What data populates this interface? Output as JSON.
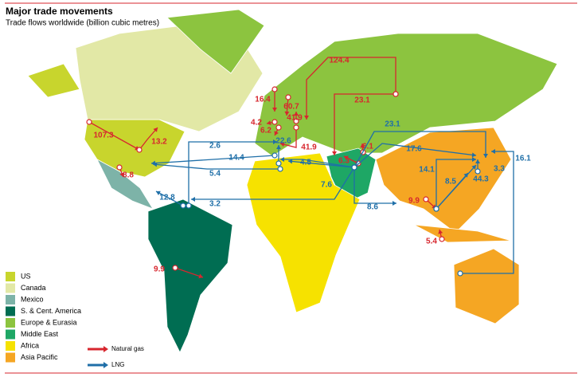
{
  "header": {
    "title": "Major trade movements",
    "subtitle": "Trade flows worldwide (billion cubic metres)"
  },
  "regions": [
    {
      "name": "US",
      "color": "#c8d52d"
    },
    {
      "name": "Canada",
      "color": "#e2e8a6"
    },
    {
      "name": "Mexico",
      "color": "#7db3a8"
    },
    {
      "name": "S. & Cent. America",
      "color": "#006d52"
    },
    {
      "name": "Europe & Eurasia",
      "color": "#8cc43f"
    },
    {
      "name": "Middle East",
      "color": "#1ea765"
    },
    {
      "name": "Africa",
      "color": "#f6e200"
    },
    {
      "name": "Asia Pacific",
      "color": "#f5a623"
    }
  ],
  "flow_types": [
    {
      "name": "Natural gas",
      "color": "#d7262e"
    },
    {
      "name": "LNG",
      "color": "#1f6fa8"
    }
  ],
  "flows": [
    {
      "value": 107.3,
      "color": "#d7262e"
    },
    {
      "value": 13.2,
      "color": "#d7262e"
    },
    {
      "value": 8.8,
      "color": "#d7262e"
    },
    {
      "value": 9.9,
      "color": "#d7262e"
    },
    {
      "value": 16.4,
      "color": "#d7262e"
    },
    {
      "value": 60.7,
      "color": "#d7262e"
    },
    {
      "value": 4.2,
      "color": "#d7262e"
    },
    {
      "value": 6.2,
      "color": "#d7262e"
    },
    {
      "value": 41.9,
      "color": "#d7262e"
    },
    {
      "value": 41.9,
      "color": "#d7262e"
    },
    {
      "value": 124.4,
      "color": "#d7262e"
    },
    {
      "value": 23.1,
      "color": "#d7262e"
    },
    {
      "value": 6.1,
      "color": "#d7262e"
    },
    {
      "value": 6.3,
      "color": "#d7262e"
    },
    {
      "value": 9.9,
      "color": "#d7262e"
    },
    {
      "value": 5.4,
      "color": "#d7262e"
    },
    {
      "value": 2.6,
      "color": "#1f6fa8"
    },
    {
      "value": 14.4,
      "color": "#1f6fa8"
    },
    {
      "value": 5.4,
      "color": "#1f6fa8"
    },
    {
      "value": 12.8,
      "color": "#1f6fa8"
    },
    {
      "value": 3.2,
      "color": "#1f6fa8"
    },
    {
      "value": 22.6,
      "color": "#1f6fa8"
    },
    {
      "value": 4.5,
      "color": "#1f6fa8"
    },
    {
      "value": 7.6,
      "color": "#1f6fa8"
    },
    {
      "value": 23.1,
      "color": "#1f6fa8"
    },
    {
      "value": 17.6,
      "color": "#1f6fa8"
    },
    {
      "value": 14.1,
      "color": "#1f6fa8"
    },
    {
      "value": 8.5,
      "color": "#1f6fa8"
    },
    {
      "value": 44.3,
      "color": "#1f6fa8"
    },
    {
      "value": 3.3,
      "color": "#1f6fa8"
    },
    {
      "value": 16.1,
      "color": "#1f6fa8"
    },
    {
      "value": 8.6,
      "color": "#1f6fa8"
    }
  ]
}
